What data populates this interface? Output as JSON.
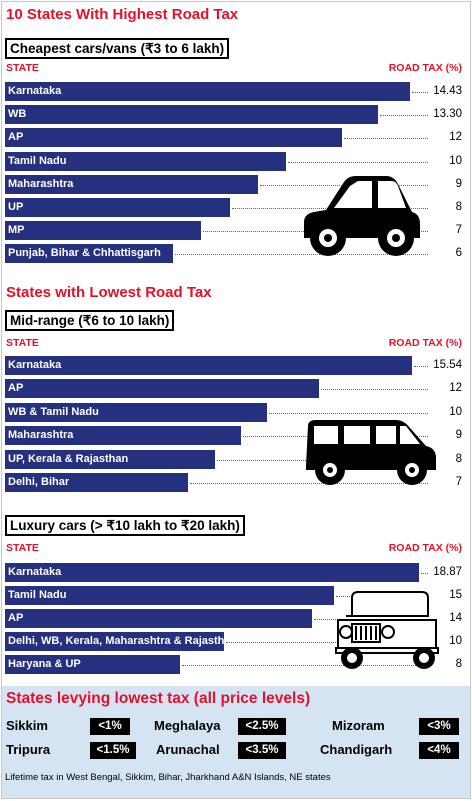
{
  "title": "10 States With Highest Road Tax",
  "column_state": "STATE",
  "column_tax": "ROAD TAX (%)",
  "lowest_title": "States with Lowest Road Tax",
  "sections": [
    {
      "subtitle": "Cheapest cars/vans (₹3 to 6 lakh)",
      "rows": [
        {
          "state": "Karnataka",
          "value": "14.43"
        },
        {
          "state": "WB",
          "value": "13.30"
        },
        {
          "state": "AP",
          "value": "12"
        },
        {
          "state": "Tamil Nadu",
          "value": "10"
        },
        {
          "state": "Maharashtra",
          "value": "9"
        },
        {
          "state": "UP",
          "value": "8"
        },
        {
          "state": "MP",
          "value": "7"
        },
        {
          "state": "Punjab, Bihar & Chhattisgarh",
          "value": "6"
        }
      ]
    },
    {
      "subtitle": "Mid-range (₹6 to 10 lakh)",
      "rows": [
        {
          "state": "Karnataka",
          "value": "15.54"
        },
        {
          "state": "AP",
          "value": "12"
        },
        {
          "state": "WB & Tamil Nadu",
          "value": "10"
        },
        {
          "state": "Maharashtra",
          "value": "9"
        },
        {
          "state": "UP, Kerala & Rajasthan",
          "value": "8"
        },
        {
          "state": "Delhi, Bihar",
          "value": "7"
        }
      ]
    },
    {
      "subtitle": "Luxury cars (> ₹10 lakh to ₹20 lakh)",
      "rows": [
        {
          "state": "Karnataka",
          "value": "18.87"
        },
        {
          "state": "Tamil Nadu",
          "value": "15"
        },
        {
          "state": "AP",
          "value": "14"
        },
        {
          "state": "Delhi, WB, Kerala, Maharashtra & Rajasthan",
          "value": "10"
        },
        {
          "state": "Haryana & UP",
          "value": "8"
        }
      ]
    }
  ],
  "lowest_all": {
    "title": "States levying lowest tax (all price levels)",
    "items": [
      {
        "state": "Sikkim",
        "tax": "<1%"
      },
      {
        "state": "Meghalaya",
        "tax": "<2.5%"
      },
      {
        "state": "Mizoram",
        "tax": "<3%"
      },
      {
        "state": "Tripura",
        "tax": "<1.5%"
      },
      {
        "state": "Arunachal",
        "tax": "<3.5%"
      },
      {
        "state": "Chandigarh",
        "tax": "<4%"
      }
    ],
    "note": "Lifetime tax in West Bengal, Sikkim, Bihar, Jharkhand A&N Islands, NE states"
  },
  "colors": {
    "bar": "#25307f",
    "heading": "#e4112a",
    "footer_bg": "#d4e4f3"
  },
  "icons": [
    "hatchback-car-icon",
    "van-icon",
    "vintage-jeep-icon"
  ],
  "chart_data": [
    {
      "type": "bar",
      "orientation": "horizontal",
      "title": "Cheapest cars/vans (₹3 to 6 lakh)",
      "xlabel": "ROAD TAX (%)",
      "ylabel": "STATE",
      "categories": [
        "Karnataka",
        "WB",
        "AP",
        "Tamil Nadu",
        "Maharashtra",
        "UP",
        "MP",
        "Punjab, Bihar & Chhattisgarh"
      ],
      "values": [
        14.43,
        13.3,
        12,
        10,
        9,
        8,
        7,
        6
      ],
      "xlim": [
        0,
        15
      ]
    },
    {
      "type": "bar",
      "orientation": "horizontal",
      "title": "Mid-range (₹6 to 10 lakh)",
      "xlabel": "ROAD TAX (%)",
      "ylabel": "STATE",
      "categories": [
        "Karnataka",
        "AP",
        "WB & Tamil Nadu",
        "Maharashtra",
        "UP, Kerala & Rajasthan",
        "Delhi, Bihar"
      ],
      "values": [
        15.54,
        12,
        10,
        9,
        8,
        7
      ],
      "xlim": [
        0,
        16
      ]
    },
    {
      "type": "bar",
      "orientation": "horizontal",
      "title": "Luxury cars (> ₹10 lakh to ₹20 lakh)",
      "xlabel": "ROAD TAX (%)",
      "ylabel": "STATE",
      "categories": [
        "Karnataka",
        "Tamil Nadu",
        "AP",
        "Delhi, WB, Kerala, Maharashtra & Rajasthan",
        "Haryana & UP"
      ],
      "values": [
        18.87,
        15,
        14,
        10,
        8
      ],
      "xlim": [
        0,
        19.3
      ]
    }
  ]
}
